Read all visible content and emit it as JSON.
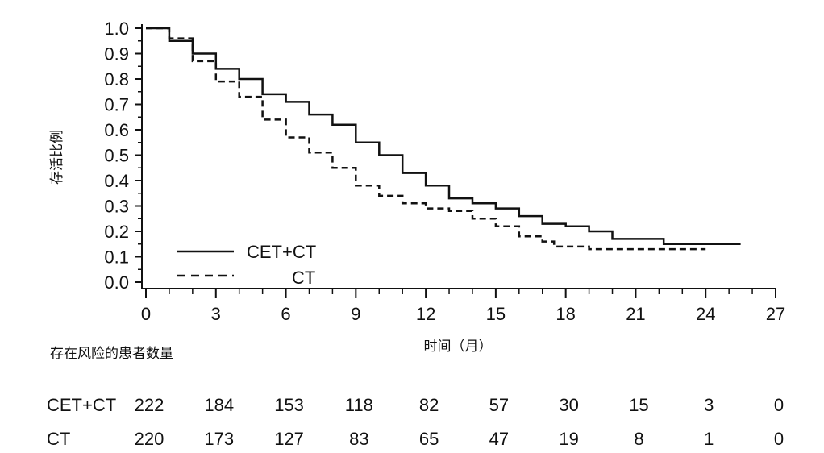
{
  "chart_data": {
    "type": "line",
    "title": "",
    "xlabel": "时间（月）",
    "ylabel": "存活比例",
    "xlim": [
      0,
      27
    ],
    "ylim": [
      0,
      1.0
    ],
    "x_ticks": [
      "0",
      "3",
      "6",
      "9",
      "12",
      "15",
      "18",
      "21",
      "24",
      "27"
    ],
    "y_ticks": [
      "0.0",
      "0.1",
      "0.2",
      "0.3",
      "0.4",
      "0.5",
      "0.6",
      "0.7",
      "0.8",
      "0.9",
      "1.0"
    ],
    "legend": {
      "position": "bottom-left"
    },
    "series": [
      {
        "name": "CET+CT",
        "style": "solid",
        "x": [
          0,
          1,
          2,
          3,
          4,
          5,
          6,
          7,
          8,
          9,
          10,
          11,
          12,
          13,
          14,
          15,
          16,
          17,
          18,
          19,
          20,
          21,
          22,
          22.2,
          24,
          25.5
        ],
        "y": [
          1.0,
          0.95,
          0.9,
          0.84,
          0.8,
          0.74,
          0.71,
          0.66,
          0.62,
          0.55,
          0.5,
          0.43,
          0.38,
          0.33,
          0.31,
          0.29,
          0.26,
          0.23,
          0.22,
          0.2,
          0.17,
          0.17,
          0.17,
          0.15,
          0.15,
          0.15
        ]
      },
      {
        "name": "CT",
        "style": "dashed",
        "x": [
          0,
          1,
          2,
          3,
          4,
          5,
          6,
          7,
          8,
          9,
          10,
          11,
          12,
          13,
          14,
          15,
          16,
          17,
          17.5,
          18,
          19,
          20,
          21,
          22,
          23,
          24
        ],
        "y": [
          1.0,
          0.96,
          0.87,
          0.79,
          0.73,
          0.64,
          0.57,
          0.51,
          0.45,
          0.38,
          0.34,
          0.31,
          0.29,
          0.28,
          0.25,
          0.22,
          0.18,
          0.16,
          0.14,
          0.14,
          0.13,
          0.13,
          0.13,
          0.13,
          0.13,
          0.13
        ]
      }
    ],
    "risk_table": {
      "title": "存在风险的患者数量",
      "rows": [
        {
          "label": "CET+CT",
          "values": [
            "222",
            "184",
            "153",
            "118",
            "82",
            "57",
            "30",
            "15",
            "3",
            "0"
          ]
        },
        {
          "label": "CT",
          "values": [
            "220",
            "173",
            "127",
            "83",
            "65",
            "47",
            "19",
            "8",
            "1",
            "0"
          ]
        }
      ]
    },
    "colors": {
      "line": "#111111",
      "background": "#ffffff"
    }
  }
}
